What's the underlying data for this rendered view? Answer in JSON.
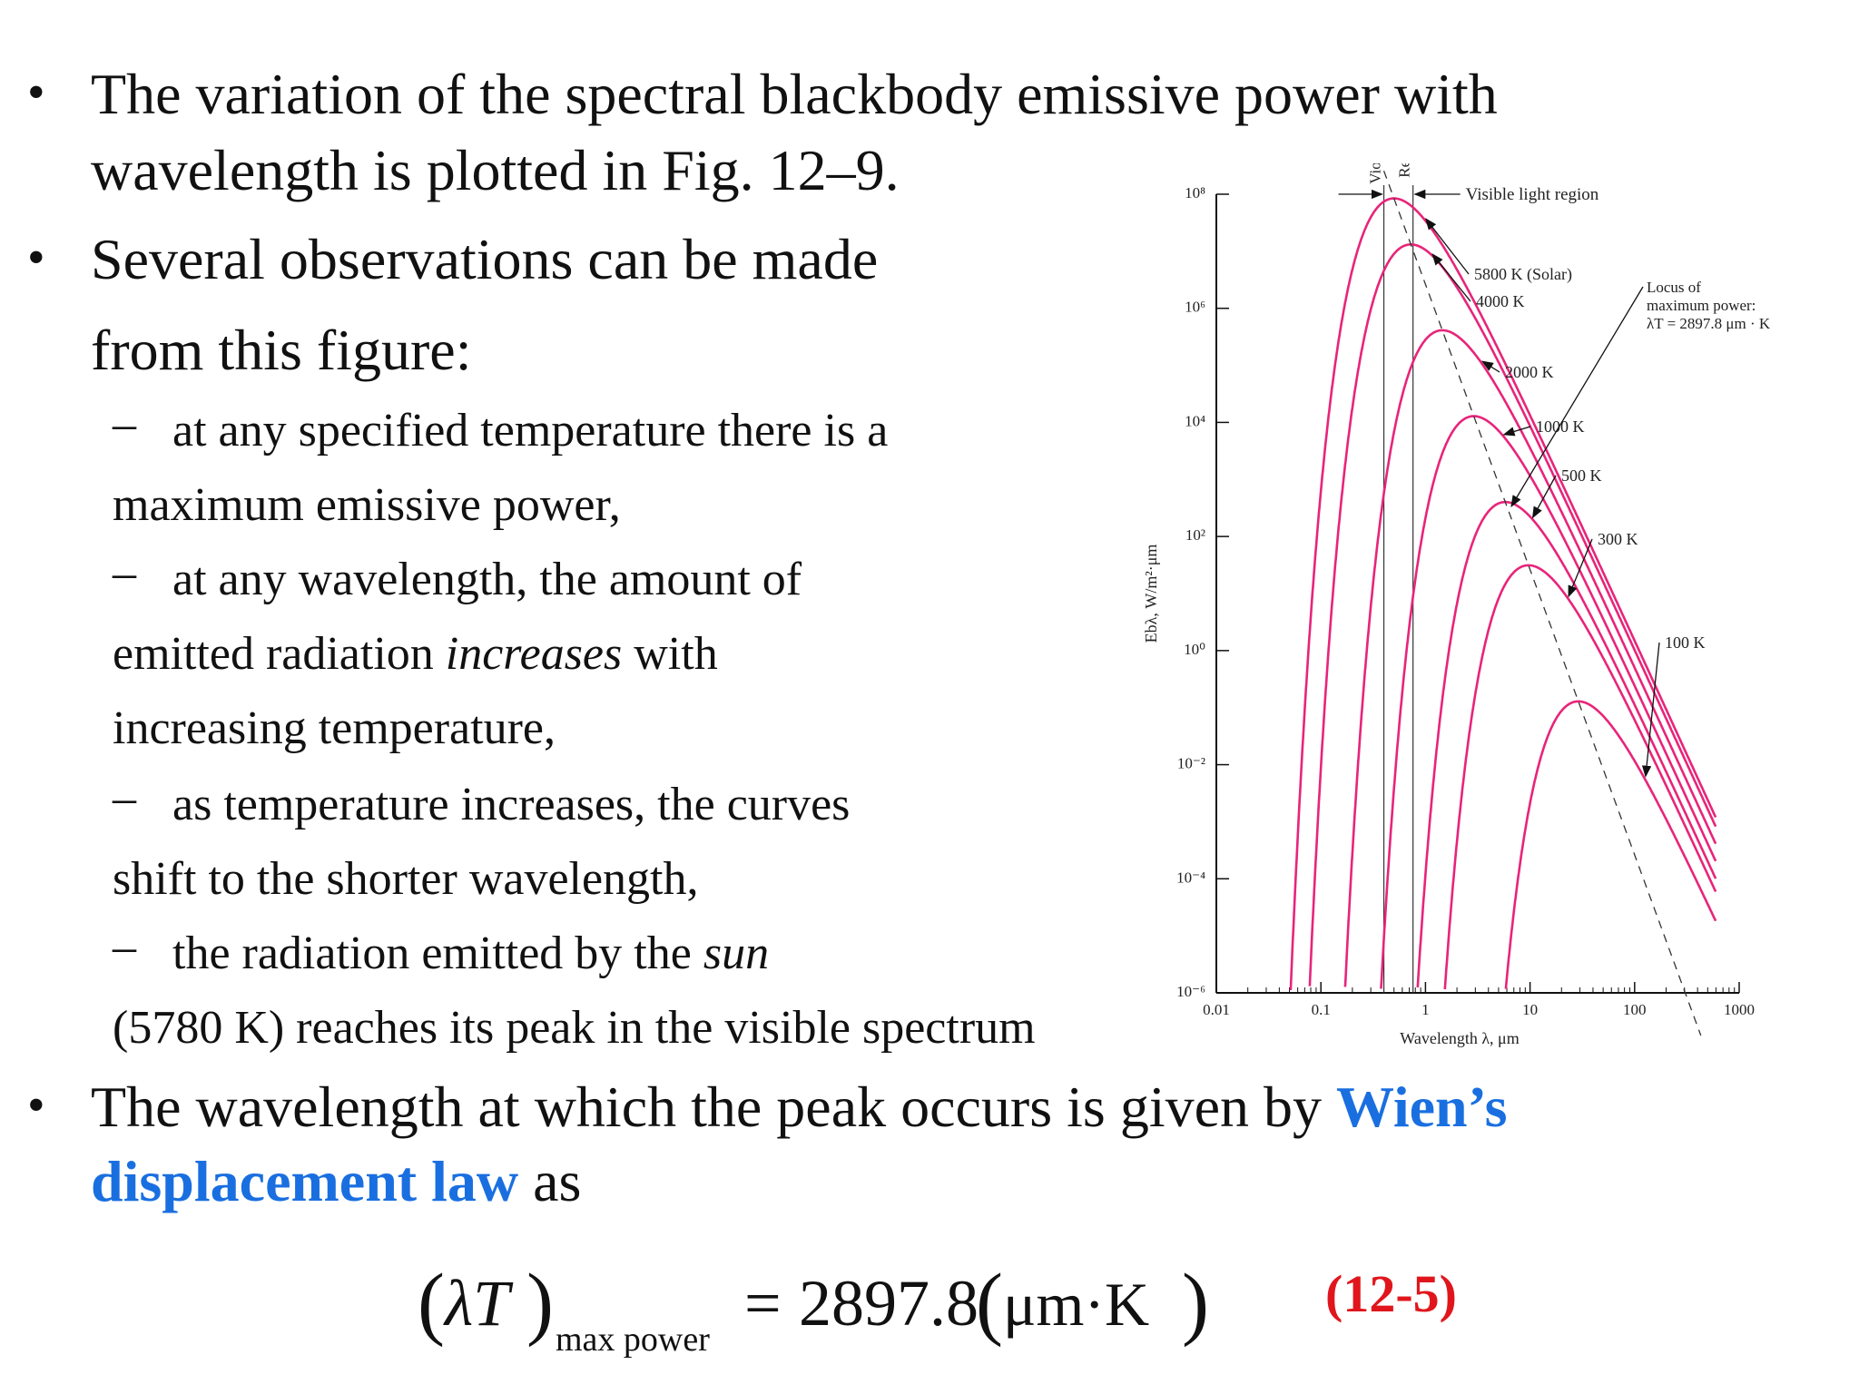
{
  "bullets": {
    "b1_line1": "The variation of the spectral blackbody emissive power with",
    "b1_line2": "wavelength is plotted in Fig. 12–9.",
    "b2_line1": "Several observations can be made",
    "b2_line2": "from this figure:",
    "s1_line1": "at any specified temperature there is a",
    "s1_line2": "maximum emissive power,",
    "s2_line1": "at any wavelength, the amount of",
    "s2_line2_a": "emitted radiation ",
    "s2_line2_em": "increases",
    "s2_line2_b": " with",
    "s2_line3": "increasing temperature,",
    "s3_line1": "as temperature increases, the curves",
    "s3_line2": "shift to the shorter wavelength,",
    "s4_line1_a": "the radiation emitted by the ",
    "s4_line1_em": "sun",
    "s4_line2": "(5780 K) reaches its peak in the visible spectrum",
    "b3_line1_a": "The wavelength at which the peak occurs is given by ",
    "b3_line1_blue": "Wien’s",
    "b3_line2_blue": "displacement law",
    "b3_line2_b": " as",
    "bullet_char": "•",
    "dash_char": "–"
  },
  "equation": {
    "open": "(",
    "lhs": "λT",
    "close": ")",
    "subscript": "max power",
    "equals": "=",
    "value": "2897.8",
    "units_open": "(",
    "units": "μm·K",
    "units_close": ")",
    "number": "(12-5)"
  },
  "colors": {
    "curve": "#e8247a",
    "highlight": "#1a6fe0",
    "eq_number": "#e0161c"
  },
  "chart_data": {
    "type": "line",
    "x_scale": "log",
    "y_scale": "log",
    "xlim": [
      0.01,
      1000
    ],
    "ylim": [
      1e-06,
      100000000.0
    ],
    "xlabel": "Wavelength λ, μm",
    "ylabel": "Ebλ, W/m²·μm",
    "x_ticks": [
      "0.01",
      "0.1",
      "1",
      "10",
      "100",
      "1000"
    ],
    "y_ticks": [
      "10⁸",
      "10⁶",
      "10⁴",
      "10²",
      "10⁰",
      "10⁻²",
      "10⁻⁴",
      "10⁻⁶"
    ],
    "series": [
      {
        "name": "5800 K (Solar)",
        "T": 5800,
        "peak_x": 0.5,
        "peak_y": 83000000.0
      },
      {
        "name": "4000 K",
        "T": 4000,
        "peak_x": 0.72,
        "peak_y": 13000000.0
      },
      {
        "name": "2000 K",
        "T": 2000,
        "peak_x": 1.45,
        "peak_y": 410000.0
      },
      {
        "name": "1000 K",
        "T": 1000,
        "peak_x": 2.9,
        "peak_y": 13000.0
      },
      {
        "name": "500 K",
        "T": 500,
        "peak_x": 5.8,
        "peak_y": 400.0
      },
      {
        "name": "300 K",
        "T": 300,
        "peak_x": 9.66,
        "peak_y": 31.0
      },
      {
        "name": "100 K",
        "T": 100,
        "peak_x": 29.0,
        "peak_y": 0.13
      }
    ],
    "locus": {
      "label": "Locus of maximum power: λT = 2897.8 μm · K",
      "x_range": [
        0.4,
        1000
      ]
    },
    "visible_region": {
      "label": "Visible light region",
      "violet_x": 0.4,
      "red_x": 0.76,
      "violet_label": "Violet",
      "red_label": "Red"
    }
  }
}
